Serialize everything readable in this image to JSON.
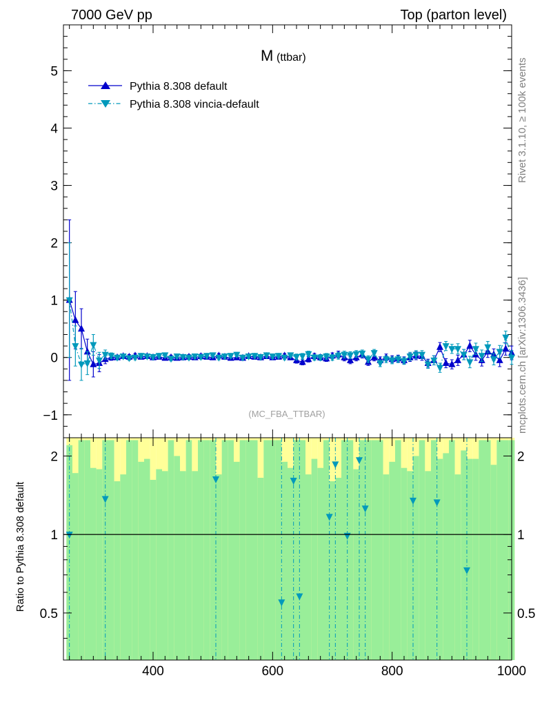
{
  "header": {
    "left": "7000 GeV pp",
    "right": "Top (parton level)"
  },
  "side_labels": {
    "rivet": "Rivet 3.1.10, ≥ 100k events",
    "mcplots": "mcplots.cern.ch [arXiv:1306.3436]"
  },
  "plot_title": {
    "main": "M",
    "sub": "(ttbar)"
  },
  "analysis_label": "(MC_FBA_TTBAR)",
  "ratio_ylabel": "Ratio to Pythia 8.308 default",
  "colors": {
    "default": "#0000cc",
    "vincia": "#0099bb",
    "band_green": "#99ee99",
    "band_yellow": "#ffff99"
  },
  "chart_data": [
    {
      "type": "line",
      "panel": "main",
      "xlim": [
        250,
        1000
      ],
      "ylim": [
        -1.4,
        5.8
      ],
      "xticks": [
        400,
        600,
        800,
        1000
      ],
      "yticks": [
        -1,
        0,
        1,
        2,
        3,
        4,
        5
      ],
      "ytick_labels": [
        "−1",
        "0",
        "1",
        "2",
        "3",
        "4",
        "5"
      ],
      "legend_position": "top-left",
      "series": [
        {
          "name": "Pythia 8.308 default",
          "style": "solid",
          "marker": "triangle-up",
          "x": [
            260,
            270,
            280,
            290,
            300,
            310,
            320,
            330,
            340,
            350,
            360,
            370,
            380,
            390,
            400,
            410,
            420,
            430,
            440,
            450,
            460,
            470,
            480,
            490,
            500,
            510,
            520,
            530,
            540,
            550,
            560,
            570,
            580,
            590,
            600,
            610,
            620,
            630,
            640,
            650,
            660,
            670,
            680,
            690,
            700,
            710,
            720,
            730,
            740,
            750,
            760,
            770,
            780,
            790,
            800,
            810,
            820,
            830,
            840,
            850,
            860,
            870,
            880,
            890,
            900,
            910,
            920,
            930,
            940,
            950,
            960,
            970,
            980,
            990,
            1000
          ],
          "y": [
            1.0,
            0.65,
            0.5,
            0.1,
            -0.12,
            -0.1,
            -0.03,
            0.0,
            0.0,
            0.02,
            0.01,
            0.03,
            0.01,
            0.02,
            0.0,
            0.01,
            -0.01,
            0.0,
            -0.01,
            0.0,
            0.01,
            0.0,
            0.02,
            0.01,
            0.0,
            0.03,
            0.01,
            -0.01,
            0.0,
            -0.01,
            0.02,
            0.01,
            0.0,
            0.02,
            0.0,
            0.01,
            0.03,
            0.0,
            -0.05,
            -0.08,
            -0.03,
            0.02,
            0.0,
            -0.02,
            0.03,
            0.05,
            0.0,
            -0.05,
            0.0,
            0.05,
            -0.08,
            0.0,
            -0.05,
            0.0,
            -0.03,
            -0.02,
            -0.05,
            0.0,
            0.03,
            0.02,
            -0.1,
            -0.05,
            0.18,
            -0.1,
            -0.12,
            -0.05,
            0.05,
            0.2,
            0.05,
            -0.05,
            0.1,
            0.05,
            -0.05,
            0.15,
            0.08
          ],
          "yerr": [
            1.4,
            0.5,
            0.35,
            0.22,
            0.22,
            0.15,
            0.08,
            0.05,
            0.04,
            0.04,
            0.04,
            0.04,
            0.04,
            0.04,
            0.04,
            0.04,
            0.04,
            0.04,
            0.04,
            0.04,
            0.04,
            0.04,
            0.04,
            0.04,
            0.04,
            0.04,
            0.04,
            0.04,
            0.04,
            0.04,
            0.04,
            0.04,
            0.04,
            0.04,
            0.04,
            0.04,
            0.04,
            0.04,
            0.05,
            0.05,
            0.05,
            0.05,
            0.05,
            0.05,
            0.05,
            0.06,
            0.06,
            0.06,
            0.06,
            0.06,
            0.06,
            0.06,
            0.06,
            0.06,
            0.06,
            0.06,
            0.06,
            0.07,
            0.07,
            0.07,
            0.07,
            0.08,
            0.08,
            0.08,
            0.08,
            0.09,
            0.09,
            0.1,
            0.1,
            0.1,
            0.1,
            0.1,
            0.11,
            0.11,
            0.12
          ]
        },
        {
          "name": "Pythia 8.308 vincia-default",
          "style": "dashdot",
          "marker": "triangle-down",
          "x": [
            260,
            270,
            280,
            290,
            300,
            310,
            320,
            330,
            340,
            350,
            360,
            370,
            380,
            390,
            400,
            410,
            420,
            430,
            440,
            450,
            460,
            470,
            480,
            490,
            500,
            510,
            520,
            530,
            540,
            550,
            560,
            570,
            580,
            590,
            600,
            610,
            620,
            630,
            640,
            650,
            660,
            670,
            680,
            690,
            700,
            710,
            720,
            730,
            740,
            750,
            760,
            770,
            780,
            790,
            800,
            810,
            820,
            830,
            840,
            850,
            860,
            870,
            880,
            890,
            900,
            910,
            920,
            930,
            940,
            950,
            960,
            970,
            980,
            990,
            1000
          ],
          "y": [
            1.0,
            0.2,
            -0.12,
            -0.1,
            0.22,
            -0.05,
            0.05,
            0.03,
            0.0,
            0.02,
            -0.01,
            0.0,
            0.03,
            0.02,
            0.01,
            0.03,
            0.04,
            -0.02,
            0.02,
            0.01,
            0.0,
            0.02,
            0.01,
            0.03,
            0.04,
            0.0,
            0.02,
            0.03,
            0.05,
            0.0,
            0.02,
            0.03,
            0.01,
            0.04,
            0.02,
            0.03,
            0.0,
            0.04,
            0.01,
            0.02,
            0.06,
            0.0,
            0.0,
            0.02,
            0.0,
            0.03,
            0.05,
            0.04,
            0.06,
            0.07,
            -0.03,
            0.08,
            -0.1,
            -0.03,
            -0.05,
            -0.03,
            -0.06,
            0.02,
            0.05,
            0.05,
            -0.12,
            -0.05,
            -0.18,
            0.2,
            0.15,
            0.15,
            0.05,
            -0.08,
            0.15,
            0.03,
            0.18,
            -0.03,
            0.1,
            0.35,
            0.0
          ],
          "yerr": [
            1.0,
            0.35,
            0.28,
            0.2,
            0.18,
            0.14,
            0.08,
            0.05,
            0.04,
            0.04,
            0.04,
            0.04,
            0.04,
            0.04,
            0.04,
            0.04,
            0.04,
            0.04,
            0.04,
            0.04,
            0.04,
            0.04,
            0.04,
            0.04,
            0.04,
            0.04,
            0.04,
            0.04,
            0.04,
            0.04,
            0.04,
            0.04,
            0.04,
            0.04,
            0.04,
            0.04,
            0.04,
            0.04,
            0.05,
            0.05,
            0.05,
            0.05,
            0.05,
            0.05,
            0.05,
            0.06,
            0.06,
            0.06,
            0.06,
            0.06,
            0.06,
            0.06,
            0.06,
            0.06,
            0.06,
            0.06,
            0.06,
            0.07,
            0.07,
            0.07,
            0.07,
            0.08,
            0.08,
            0.08,
            0.08,
            0.09,
            0.09,
            0.1,
            0.1,
            0.1,
            0.1,
            0.1,
            0.11,
            0.11,
            0.12
          ]
        }
      ]
    },
    {
      "type": "line",
      "panel": "ratio",
      "xlim": [
        250,
        1000
      ],
      "ylim": [
        0.33,
        2.35
      ],
      "yscale": "log",
      "xticks": [
        400,
        600,
        800,
        1000
      ],
      "yticks": [
        0.5,
        1,
        2
      ],
      "ylabel": "Ratio to Pythia 8.308 default",
      "reference_line": 1,
      "series": [
        {
          "name": "Pythia 8.308 vincia-default",
          "style": "dashdot",
          "marker": "triangle-down",
          "x": [
            260,
            320,
            505,
            615,
            635,
            645,
            695,
            705,
            725,
            745,
            755,
            835,
            875,
            925
          ],
          "y": [
            1.0,
            1.37,
            1.63,
            0.55,
            1.61,
            0.58,
            1.17,
            1.86,
            0.99,
            1.93,
            1.26,
            1.35,
            1.33,
            0.73
          ]
        }
      ],
      "bands": {
        "x": [
          260,
          270,
          280,
          290,
          300,
          310,
          320,
          330,
          340,
          350,
          360,
          370,
          380,
          390,
          400,
          410,
          420,
          430,
          440,
          450,
          460,
          470,
          480,
          490,
          500,
          510,
          520,
          530,
          540,
          550,
          560,
          570,
          580,
          590,
          600,
          610,
          620,
          630,
          640,
          650,
          660,
          670,
          680,
          690,
          700,
          710,
          720,
          730,
          740,
          750,
          760,
          770,
          780,
          790,
          800,
          810,
          820,
          830,
          840,
          850,
          860,
          870,
          880,
          890,
          900,
          910,
          920,
          930,
          940,
          950,
          960,
          970,
          980,
          990,
          1000
        ],
        "green_top": [
          2.2,
          1.72,
          2.3,
          2.3,
          1.8,
          1.78,
          2.3,
          2.3,
          1.6,
          1.7,
          2.3,
          2.3,
          1.9,
          1.95,
          1.62,
          1.78,
          1.75,
          2.3,
          2.0,
          1.75,
          2.3,
          1.75,
          2.3,
          2.3,
          2.3,
          1.7,
          2.3,
          2.3,
          1.9,
          2.3,
          2.3,
          2.3,
          1.65,
          2.3,
          2.3,
          2.3,
          1.9,
          1.8,
          2.3,
          2.3,
          1.7,
          1.95,
          1.8,
          2.3,
          1.6,
          1.65,
          2.3,
          2.3,
          1.78,
          2.3,
          2.3,
          2.3,
          2.3,
          1.7,
          1.9,
          2.3,
          1.8,
          1.75,
          2.0,
          2.3,
          1.75,
          2.3,
          1.95,
          2.05,
          2.3,
          1.7,
          2.1,
          1.95,
          1.95,
          2.3,
          2.3,
          1.85,
          2.3,
          2.3,
          2.3
        ],
        "yellow_top": [
          2.35,
          2.35,
          2.35,
          2.35,
          2.35,
          2.35,
          2.35,
          2.35,
          2.35,
          2.35,
          2.35,
          2.35,
          2.35,
          2.35,
          2.35,
          2.35,
          2.35,
          2.35,
          2.35,
          2.35,
          2.35,
          2.35,
          2.35,
          2.35,
          2.35,
          2.35,
          2.35,
          2.35,
          2.35,
          2.35,
          2.35,
          2.35,
          2.35,
          2.35,
          2.35,
          2.35,
          2.35,
          2.35,
          2.35,
          2.35,
          2.35,
          2.35,
          2.35,
          2.35,
          2.35,
          2.35,
          2.35,
          2.35,
          2.35,
          2.35,
          2.35,
          2.35,
          2.35,
          2.35,
          2.35,
          2.35,
          2.35,
          2.35,
          2.35,
          2.35,
          2.35,
          2.35,
          2.35,
          2.35,
          2.35,
          2.35,
          2.35,
          2.35,
          2.35,
          2.35,
          2.35,
          2.35,
          2.35,
          2.35,
          2.35
        ]
      }
    }
  ]
}
